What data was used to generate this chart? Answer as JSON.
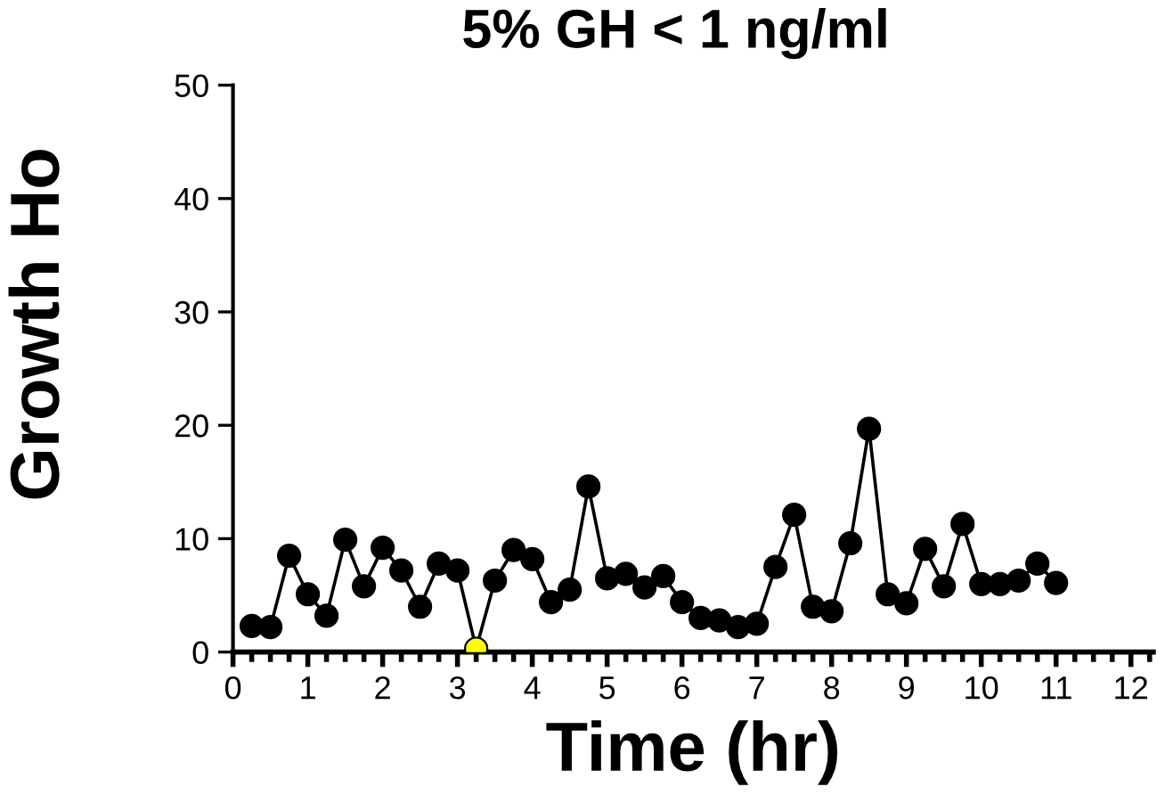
{
  "chart_data": {
    "type": "line",
    "title": "5% GH < 1 ng/ml",
    "xlabel": "Time (hr)",
    "ylabel": "Growth Ho",
    "x": [
      0.25,
      0.5,
      0.75,
      1.0,
      1.25,
      1.5,
      1.75,
      2.0,
      2.25,
      2.5,
      2.75,
      3.0,
      3.25,
      3.5,
      3.75,
      4.0,
      4.25,
      4.5,
      4.75,
      5.0,
      5.25,
      5.5,
      5.75,
      6.0,
      6.25,
      6.5,
      6.75,
      7.0,
      7.25,
      7.5,
      7.75,
      8.0,
      8.25,
      8.5,
      8.75,
      9.0,
      9.25,
      9.5,
      9.75,
      10.0,
      10.25,
      10.5,
      10.75,
      11.0
    ],
    "series": [
      {
        "color": "#000000",
        "colors": [
          "#000000",
          "#000000",
          "#000000",
          "#000000",
          "#000000",
          "#000000",
          "#000000",
          "#000000",
          "#000000",
          "#000000",
          "#000000",
          "#000000",
          "#ffff00",
          "#000000",
          "#000000",
          "#000000",
          "#000000",
          "#000000",
          "#000000",
          "#000000",
          "#000000",
          "#000000",
          "#000000",
          "#000000",
          "#000000",
          "#000000",
          "#000000",
          "#000000",
          "#000000",
          "#000000",
          "#000000",
          "#000000",
          "#000000",
          "#000000",
          "#000000",
          "#000000",
          "#000000",
          "#000000",
          "#000000",
          "#000000",
          "#000000",
          "#000000",
          "#000000",
          "#000000"
        ],
        "values": [
          2.3,
          2.2,
          8.5,
          5.1,
          3.2,
          9.9,
          5.8,
          9.2,
          7.2,
          4.0,
          7.8,
          7.2,
          0.3,
          6.3,
          9.0,
          8.2,
          4.4,
          5.5,
          14.6,
          6.5,
          6.9,
          5.7,
          6.7,
          4.4,
          3.0,
          2.8,
          2.2,
          2.5,
          7.5,
          12.1,
          4.0,
          3.6,
          9.6,
          19.7,
          5.1,
          4.3,
          9.1,
          5.8,
          11.3,
          6.0,
          6.0,
          6.3,
          7.8,
          6.1
        ]
      }
    ],
    "xlim": [
      0,
      12.3
    ],
    "ylim": [
      0,
      50
    ],
    "xticks": [
      0,
      1,
      2,
      3,
      4,
      5,
      6,
      7,
      8,
      9,
      10,
      11,
      12,
      {
        "value": 0.25,
        "label": null
      },
      {
        "value": 0.5,
        "label": null
      },
      {
        "value": 0.75,
        "label": null
      },
      {
        "value": 1.25,
        "label": null
      },
      {
        "value": 1.5,
        "label": null
      },
      {
        "value": 1.75,
        "label": null
      },
      {
        "value": 2.25,
        "label": null
      },
      {
        "value": 2.5,
        "label": null
      },
      {
        "value": 2.75,
        "label": null
      },
      {
        "value": 3.25,
        "label": null
      },
      {
        "value": 3.5,
        "label": null
      },
      {
        "value": 3.75,
        "label": null
      },
      {
        "value": 4.25,
        "label": null
      },
      {
        "value": 4.5,
        "label": null
      },
      {
        "value": 4.75,
        "label": null
      },
      {
        "value": 5.25,
        "label": null
      },
      {
        "value": 5.5,
        "label": null
      },
      {
        "value": 5.75,
        "label": null
      },
      {
        "value": 6.25,
        "label": null
      },
      {
        "value": 6.5,
        "label": null
      },
      {
        "value": 6.75,
        "label": null
      },
      {
        "value": 7.25,
        "label": null
      },
      {
        "value": 7.5,
        "label": null
      },
      {
        "value": 7.75,
        "label": null
      },
      {
        "value": 8.25,
        "label": null
      },
      {
        "value": 8.5,
        "label": null
      },
      {
        "value": 8.75,
        "label": null
      },
      {
        "value": 9.25,
        "label": null
      },
      {
        "value": 9.5,
        "label": null
      },
      {
        "value": 9.75,
        "label": null
      },
      {
        "value": 10.25,
        "label": null
      },
      {
        "value": 10.5,
        "label": null
      },
      {
        "value": 10.75,
        "label": null
      },
      {
        "value": 11.25,
        "label": null
      },
      {
        "value": 11.5,
        "label": null
      },
      {
        "value": 11.75,
        "label": null
      },
      {
        "value": 12.25,
        "label": null
      }
    ],
    "yticks": [
      0,
      10,
      20,
      30,
      40,
      50
    ],
    "marker": "circle",
    "line_style": "solid",
    "grid": false,
    "legend": false
  }
}
